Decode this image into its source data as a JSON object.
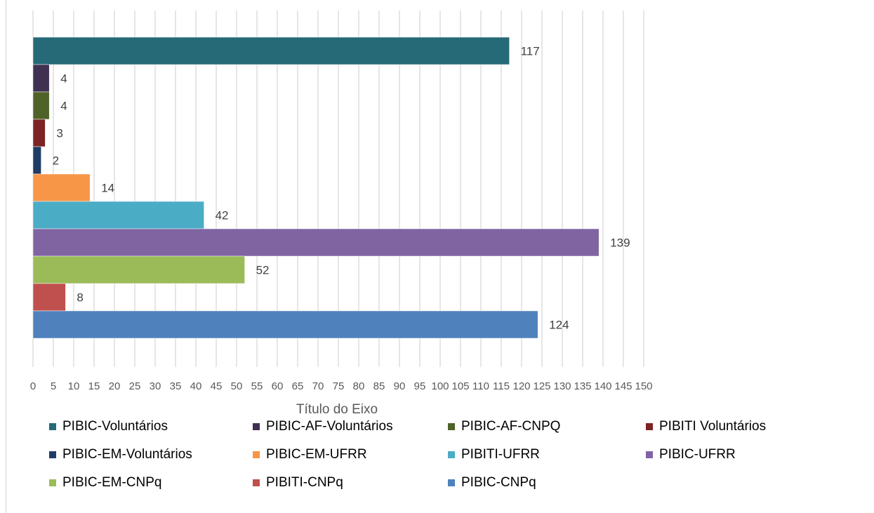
{
  "chart_data": {
    "type": "bar",
    "orientation": "horizontal",
    "xlabel": "Título do Eixo",
    "xlim": [
      0,
      150
    ],
    "x_ticks": [
      0,
      5,
      10,
      15,
      20,
      25,
      30,
      35,
      40,
      45,
      50,
      55,
      60,
      65,
      70,
      75,
      80,
      85,
      90,
      95,
      100,
      105,
      110,
      115,
      120,
      125,
      130,
      135,
      140,
      145,
      150
    ],
    "grid": true,
    "legend_position": "bottom",
    "series": [
      {
        "name": "PIBIC-Voluntários",
        "value": 117,
        "color": "#266977"
      },
      {
        "name": "PIBIC-AF-Voluntários",
        "value": 4,
        "color": "#403152"
      },
      {
        "name": "PIBIC-AF-CNPQ",
        "value": 4,
        "color": "#4F6228"
      },
      {
        "name": "PIBITI Voluntários",
        "value": 3,
        "color": "#7B2423"
      },
      {
        "name": "PIBIC-EM-Voluntários",
        "value": 2,
        "color": "#1F3C64"
      },
      {
        "name": "PIBIC-EM-UFRR",
        "value": 14,
        "color": "#F79646"
      },
      {
        "name": "PIBITI-UFRR",
        "value": 42,
        "color": "#4BACC6"
      },
      {
        "name": "PIBIC-UFRR",
        "value": 139,
        "color": "#8064A2"
      },
      {
        "name": "PIBIC-EM-CNPq",
        "value": 52,
        "color": "#9BBB59"
      },
      {
        "name": "PIBITI-CNPq",
        "value": 8,
        "color": "#C0504D"
      },
      {
        "name": "PIBIC-CNPq",
        "value": 124,
        "color": "#4F81BD"
      }
    ]
  }
}
